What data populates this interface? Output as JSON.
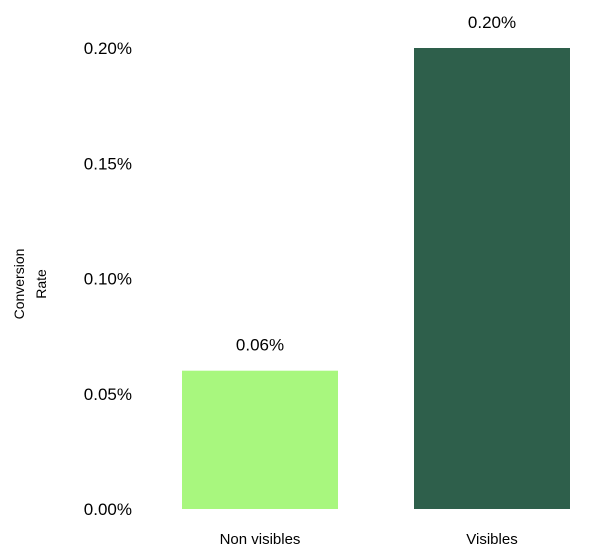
{
  "chart_data": {
    "type": "bar",
    "categories": [
      "Non visibles",
      "Visibles"
    ],
    "values": [
      0.06,
      0.2
    ],
    "value_labels": [
      "0.06%",
      "0.20%"
    ],
    "ylabel": "Conversion Rate",
    "ylabel_lines": [
      "Conversion",
      "Rate"
    ],
    "ylim": [
      0,
      0.2
    ],
    "y_ticks": [
      0,
      0.05,
      0.1,
      0.15,
      0.2
    ],
    "y_tick_labels": [
      "0.00%",
      "0.05%",
      "0.10%",
      "0.15%",
      "0.20%"
    ],
    "grid": false,
    "legend": "none",
    "colors": [
      "#a8f77e",
      "#2e5f4b"
    ]
  }
}
